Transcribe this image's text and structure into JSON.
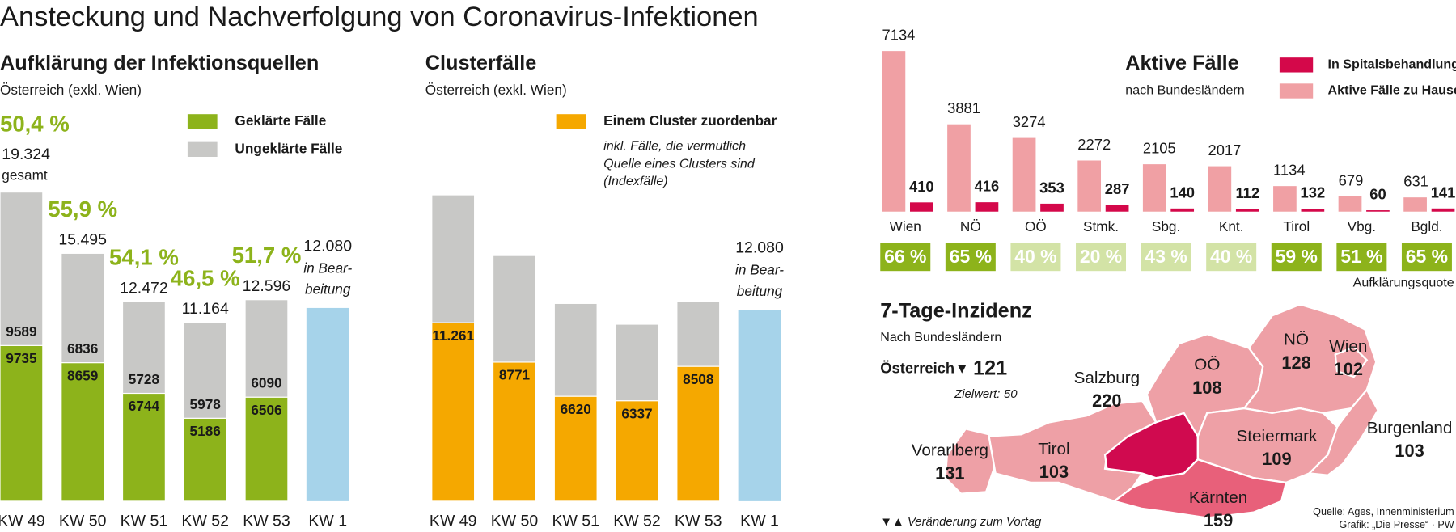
{
  "title": "Ansteckung und Nachverfolgung von Coronavirus-Infektionen",
  "chart_data": [
    {
      "type": "bar",
      "stacked": true,
      "title": "Aufklärung der Infektionsquellen",
      "subtitle": "Österreich (exkl. Wien)",
      "categories": [
        "KW 49",
        "KW 50",
        "KW 51",
        "KW 52",
        "KW 53",
        "KW 1"
      ],
      "series": [
        {
          "name": "Geklärte Fälle",
          "color": "#8db31b",
          "values": [
            9735,
            8659,
            6744,
            5186,
            6506,
            null
          ]
        },
        {
          "name": "Ungeklärte Fälle",
          "color": "#c8c8c6",
          "values": [
            9589,
            6836,
            5728,
            5978,
            6090,
            null
          ]
        }
      ],
      "totals": {
        "values": [
          19324,
          15495,
          12472,
          11164,
          12596,
          null
        ],
        "value_labels": [
          "19.324",
          "15.495",
          "12.472",
          "11.164",
          "12.596",
          null
        ],
        "note": "gesamt"
      },
      "shares": {
        "color": "#8db31b",
        "values": [
          50.4,
          55.9,
          54.1,
          46.5,
          51.7,
          null
        ],
        "value_labels": [
          "50,4 %",
          "55,9 %",
          "54,1 %",
          "46,5 %",
          "51,7 %",
          null
        ]
      },
      "pending": {
        "color": "#a6d3ea",
        "values": [
          null,
          null,
          null,
          null,
          null,
          12080
        ],
        "value_labels": [
          null,
          null,
          null,
          null,
          null,
          "12.080"
        ],
        "label": [
          "in Bear-",
          "beitung"
        ]
      }
    },
    {
      "type": "bar",
      "stacked": true,
      "title": "Clusterfälle",
      "subtitle": "Österreich (exkl. Wien)",
      "categories": [
        "KW 49",
        "KW 50",
        "KW 51",
        "KW 52",
        "KW 53",
        "KW 1"
      ],
      "series": [
        {
          "name": "Einem Cluster zuordenbar",
          "color": "#f5a800",
          "values": [
            11261,
            8771,
            6620,
            6337,
            8508,
            null
          ],
          "value_labels": [
            "11.261",
            "8771",
            "6620",
            "6337",
            "8508",
            null
          ]
        }
      ],
      "remainder": {
        "color": "#c8c8c6",
        "values": [
          8063,
          6724,
          5852,
          4827,
          4088,
          null
        ]
      },
      "note": [
        "inkl. Fälle, die vermutlich",
        "Quelle eines Clusters sind",
        "(Indexfälle)"
      ],
      "pending": {
        "color": "#a6d3ea",
        "values": [
          null,
          null,
          null,
          null,
          null,
          12080
        ],
        "value_labels": [
          null,
          null,
          null,
          null,
          null,
          "12.080"
        ],
        "label": [
          "in Bear-",
          "beitung"
        ]
      }
    },
    {
      "type": "bar",
      "stacked": false,
      "title": "Aktive Fälle",
      "subtitle": "nach Bundesländern",
      "categories": [
        "Wien",
        "NÖ",
        "OÖ",
        "Stmk.",
        "Sbg.",
        "Knt.",
        "Tirol",
        "Vbg.",
        "Bgld."
      ],
      "series": [
        {
          "name": "In Spitalsbehandlung",
          "color": "#d4084a",
          "values": [
            410,
            416,
            353,
            287,
            140,
            112,
            132,
            60,
            141
          ]
        },
        {
          "name": "Aktive Fälle zu Hause",
          "color": "#f0a0a4",
          "values": [
            7134,
            3881,
            3274,
            2272,
            2105,
            2017,
            1134,
            679,
            631
          ]
        }
      ],
      "quote": {
        "label": "Aufklärungsquote",
        "values": [
          66,
          65,
          40,
          20,
          43,
          40,
          59,
          51,
          65
        ],
        "value_labels": [
          "66 %",
          "65 %",
          "40 %",
          "20 %",
          "43 %",
          "40 %",
          "59 %",
          "51 %",
          "65 %"
        ],
        "colors": [
          "#8db31b",
          "#8db31b",
          "#d3e3a6",
          "#d3e3a6",
          "#d3e3a6",
          "#d3e3a6",
          "#8db31b",
          "#8db31b",
          "#8db31b"
        ]
      }
    },
    {
      "type": "map",
      "title": "7-Tage-Inzidenz",
      "subtitle": "Nach Bundesländern",
      "austria": {
        "label": "Österreich",
        "trend": "▼",
        "value": 121
      },
      "target": {
        "label": "Zielwert:",
        "value": 50
      },
      "trend_note": "▼▲ Veränderung zum Vortag",
      "regions": [
        {
          "name": "Vorarlberg",
          "value": 131,
          "color": "#eea0a6"
        },
        {
          "name": "Tirol",
          "value": 103,
          "color": "#eea0a6"
        },
        {
          "name": "Salzburg",
          "value": 220,
          "color": "#d00a4f"
        },
        {
          "name": "OÖ",
          "value": 108,
          "color": "#eea0a6"
        },
        {
          "name": "NÖ",
          "value": 128,
          "color": "#eea0a6"
        },
        {
          "name": "Wien",
          "value": 102,
          "color": "#eea0a6"
        },
        {
          "name": "Steiermark",
          "value": 109,
          "color": "#eea0a6"
        },
        {
          "name": "Burgenland",
          "value": 103,
          "color": "#eea0a6"
        },
        {
          "name": "Kärnten",
          "value": 159,
          "color": "#e8607a"
        }
      ],
      "source": [
        "Quelle: Ages, Innenministerium",
        "Grafik: „Die Presse“ · PW"
      ]
    }
  ]
}
